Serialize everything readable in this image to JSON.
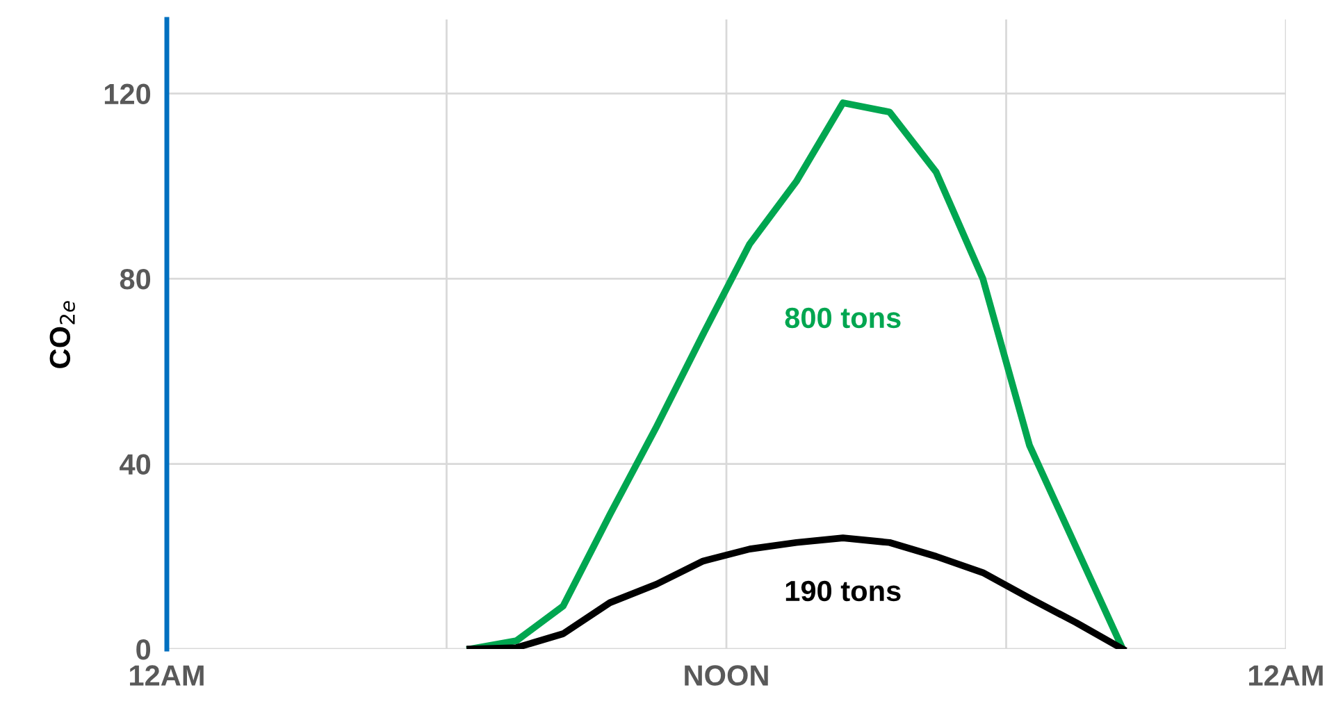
{
  "chart_data": {
    "type": "line",
    "ylabel": "CO$_{2e}$",
    "categories": [
      "12AM",
      null,
      null,
      null,
      null,
      null,
      null,
      null,
      null,
      null,
      null,
      null,
      null,
      null,
      null,
      null,
      null,
      null,
      null,
      null,
      null,
      null,
      null,
      null,
      "NOON",
      null,
      null,
      null,
      null,
      null,
      null,
      null,
      null,
      null,
      null,
      null,
      null,
      null,
      null,
      null,
      null,
      null,
      null,
      null,
      null,
      null,
      null,
      null,
      "12AM"
    ],
    "ylim": [
      0,
      136
    ],
    "yticks": [
      0,
      40,
      80,
      120
    ],
    "grid": true,
    "marker": "none",
    "line_style": "solid",
    "series": [
      {
        "name": "800 tons",
        "color": "#00a650",
        "values": [
          null,
          null,
          null,
          null,
          null,
          null,
          null,
          null,
          null,
          null,
          null,
          null,
          null,
          0,
          null,
          1.8,
          null,
          9.3,
          null,
          29,
          null,
          48,
          null,
          68,
          null,
          87.5,
          null,
          101,
          null,
          118,
          null,
          116,
          null,
          103,
          null,
          80,
          null,
          44,
          null,
          22,
          null,
          0,
          null,
          null,
          null,
          null,
          null,
          null,
          null
        ]
      },
      {
        "name": "190 tons",
        "color": "#000000",
        "values": [
          null,
          null,
          null,
          null,
          null,
          null,
          null,
          null,
          null,
          null,
          null,
          null,
          null,
          0,
          null,
          0.3,
          null,
          3.3,
          null,
          10,
          null,
          14,
          null,
          19,
          null,
          21.6,
          null,
          23,
          null,
          24,
          null,
          23,
          null,
          20,
          null,
          16.5,
          null,
          11,
          null,
          5.7,
          null,
          0,
          null,
          null,
          null,
          null,
          null,
          null,
          null
        ]
      }
    ]
  }
}
